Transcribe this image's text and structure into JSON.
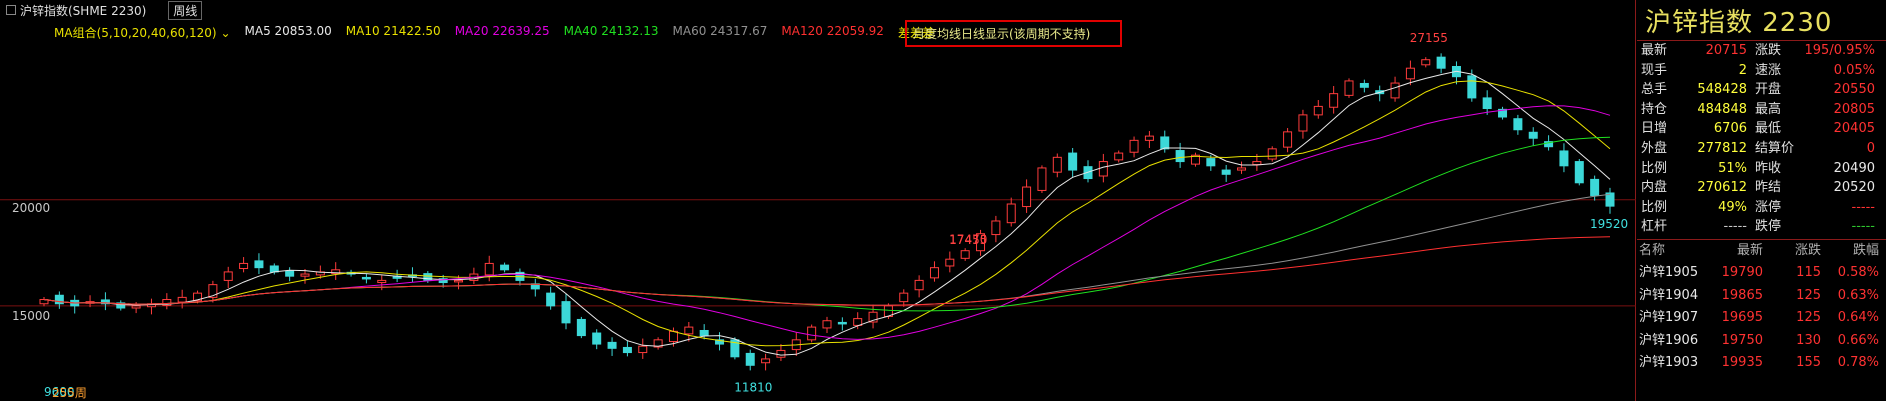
{
  "tabs": [
    {
      "label": "沪锌指数(SHME 2230)"
    },
    {
      "label": "周线"
    }
  ],
  "indicator": {
    "group": "MA组合(5,10,20,40,60,120)",
    "items": [
      {
        "label": "MA5 20853.00",
        "color": "#e8e8e8"
      },
      {
        "label": "MA10 21422.50",
        "color": "#e8e000"
      },
      {
        "label": "MA20 22639.25",
        "color": "#e000e0"
      },
      {
        "label": "MA40 24132.13",
        "color": "#20e020"
      },
      {
        "label": "MA60 24317.67",
        "color": "#909090"
      },
      {
        "label": "MA120 22059.92",
        "color": "#ff3030"
      },
      {
        "label": "差差差",
        "color": "#e8e000"
      }
    ]
  },
  "notice": "月度均线日线显示(该周期不支持)",
  "y_axis": [
    {
      "label": "20000",
      "value": 20000
    },
    {
      "label": "15000",
      "value": 15000
    }
  ],
  "annotations": [
    {
      "label": "17455",
      "color": "#ff4040"
    },
    {
      "label": "17470",
      "color": "#ff4040"
    },
    {
      "label": "27155",
      "color": "#ff4040"
    },
    {
      "label": "19520",
      "color": "#40e0e0"
    },
    {
      "label": "11810",
      "color": "#40e0e0"
    },
    {
      "label": "9600",
      "color": "#40e0e0"
    }
  ],
  "footer_label": "255周",
  "chart_data": {
    "type": "candlestick",
    "ylim": [
      10800,
      28000
    ],
    "extremes": {
      "high_1": 17455,
      "high_2": 17470,
      "high_3": 27155,
      "low_1": 11810,
      "last_low": 19520,
      "first_low": 9600
    },
    "close_path": [
      15300,
      15100,
      15000,
      15200,
      15100,
      14900,
      15000,
      15100,
      15300,
      15400,
      15600,
      16000,
      16600,
      17000,
      16800,
      16600,
      16400,
      16500,
      16600,
      16700,
      16500,
      16300,
      16200,
      16300,
      16400,
      16200,
      16100,
      16200,
      16500,
      17000,
      16700,
      16200,
      15800,
      15000,
      14200,
      13600,
      13200,
      13000,
      12800,
      13100,
      13400,
      13800,
      14000,
      13600,
      13200,
      12600,
      12200,
      12500,
      12900,
      13400,
      14000,
      14300,
      14200,
      14400,
      14700,
      15000,
      15600,
      16200,
      16800,
      17200,
      17600,
      18400,
      19000,
      19800,
      20600,
      21500,
      22000,
      21400,
      21000,
      21800,
      22200,
      22800,
      23000,
      22400,
      21800,
      22100,
      21600,
      21200,
      21500,
      21800,
      22400,
      23200,
      24000,
      24400,
      25000,
      25600,
      25300,
      25000,
      25500,
      26200,
      26600,
      26200,
      25800,
      24800,
      24300,
      23900,
      23300,
      22900,
      22500,
      21600,
      20800,
      20200,
      19700
    ]
  },
  "quote": {
    "title": "沪锌指数  2230",
    "rows": [
      [
        "最新",
        "20715",
        "涨跌",
        "195/0.95%"
      ],
      [
        "现手",
        "2",
        "速涨",
        "0.05%"
      ],
      [
        "总手",
        "548428",
        "开盘",
        "20550"
      ],
      [
        "持仓",
        "484848",
        "最高",
        "20805"
      ],
      [
        "日增",
        "6706",
        "最低",
        "20405"
      ],
      [
        "外盘",
        "277812",
        "结算价",
        "0"
      ],
      [
        "比例",
        "51%",
        "昨收",
        "20490"
      ],
      [
        "内盘",
        "270612",
        "昨结",
        "20520"
      ],
      [
        "比例",
        "49%",
        "涨停",
        "-----"
      ],
      [
        "杠杆",
        "-----",
        "跌停",
        "-----"
      ]
    ],
    "value_colors": [
      [
        "#ff3232",
        "#ff3232"
      ],
      [
        "#ffff3c",
        "#ff3232"
      ],
      [
        "#ffff3c",
        "#ff3232"
      ],
      [
        "#ffff3c",
        "#ff3232"
      ],
      [
        "#ffff3c",
        "#ff3232"
      ],
      [
        "#ffff3c",
        "#ff3232"
      ],
      [
        "#ffff3c",
        "#e8e8e8"
      ],
      [
        "#ffff3c",
        "#e8e8e8"
      ],
      [
        "#ffff3c",
        "#ff3232"
      ],
      [
        "#c8c8c8",
        "#2ec82e"
      ]
    ]
  },
  "contracts": {
    "header": [
      "名称",
      "最新",
      "涨跌",
      "跌幅"
    ],
    "rows": [
      [
        "沪锌1905",
        "19790",
        "115",
        "0.58%"
      ],
      [
        "沪锌1904",
        "19865",
        "125",
        "0.63%"
      ],
      [
        "沪锌1907",
        "19695",
        "125",
        "0.64%"
      ],
      [
        "沪锌1906",
        "19750",
        "130",
        "0.66%"
      ],
      [
        "沪锌1903",
        "19935",
        "155",
        "0.78%"
      ]
    ]
  }
}
